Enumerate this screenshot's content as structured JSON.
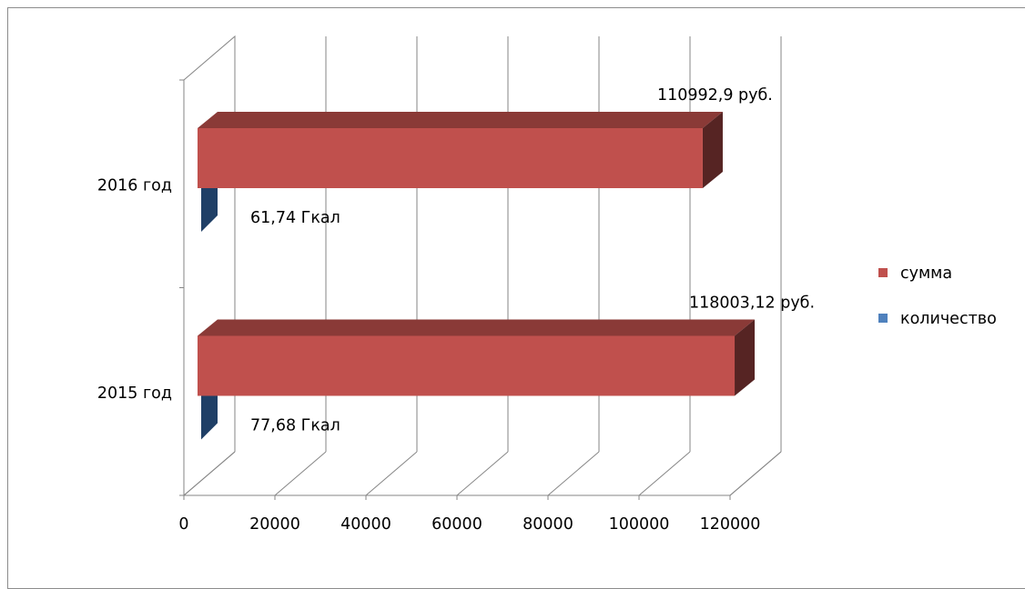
{
  "chart_data": {
    "type": "bar",
    "orientation": "horizontal",
    "style": "3d",
    "categories": [
      "2015 год",
      "2016 год"
    ],
    "series": [
      {
        "name": "сумма",
        "color": "#C0504D",
        "values": [
          118003.12,
          110992.9
        ],
        "labels": [
          "118003,12 руб.",
          "110992,9 руб."
        ]
      },
      {
        "name": "количество",
        "color": "#4F81BD",
        "values": [
          77.68,
          61.74
        ],
        "labels": [
          "77,68 Гкал",
          "61,74 Гкал"
        ]
      }
    ],
    "x_ticks": [
      "0",
      "20000",
      "40000",
      "60000",
      "80000",
      "100000",
      "120000"
    ],
    "xlim": [
      0,
      120000
    ],
    "grid": true,
    "legend_position": "right",
    "title": "",
    "xlabel": "",
    "ylabel": ""
  }
}
